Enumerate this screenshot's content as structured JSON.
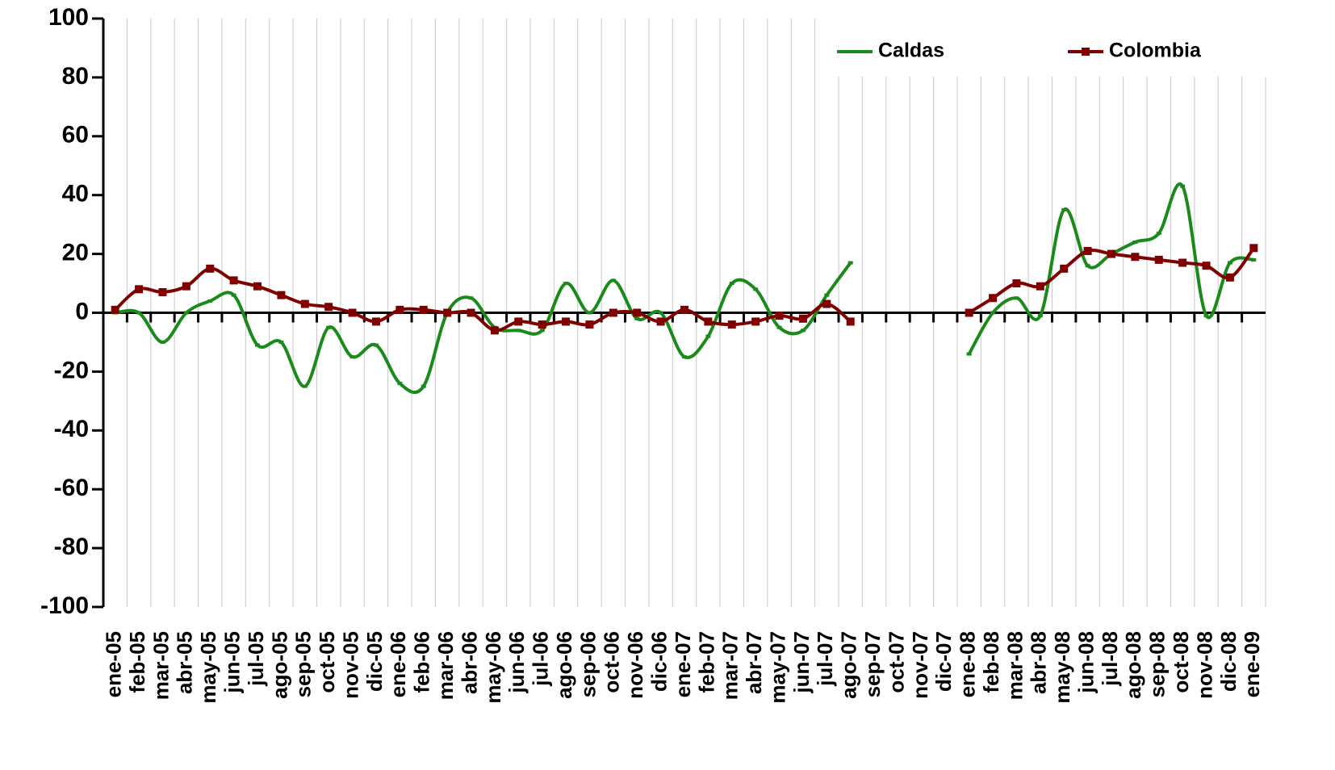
{
  "chart_data": {
    "type": "line",
    "categories": [
      "ene-05",
      "feb-05",
      "mar-05",
      "abr-05",
      "may-05",
      "jun-05",
      "jul-05",
      "ago-05",
      "sep-05",
      "oct-05",
      "nov-05",
      "dic-05",
      "ene-06",
      "feb-06",
      "mar-06",
      "abr-06",
      "may-06",
      "jun-06",
      "jul-06",
      "ago-06",
      "sep-06",
      "oct-06",
      "nov-06",
      "dic-06",
      "ene-07",
      "feb-07",
      "mar-07",
      "abr-07",
      "may-07",
      "jun-07",
      "jul-07",
      "ago-07",
      "sep-07",
      "oct-07",
      "nov-07",
      "dic-07",
      "ene-08",
      "feb-08",
      "mar-08",
      "abr-08",
      "may-08",
      "jun-08",
      "jul-08",
      "ago-08",
      "sep-08",
      "oct-08",
      "nov-08",
      "dic-08",
      "ene-09"
    ],
    "series": [
      {
        "name": "Caldas",
        "color": "#1a8a1a",
        "values": [
          0,
          0,
          -10,
          0,
          4,
          6,
          -11,
          -10,
          -25,
          -5,
          -15,
          -11,
          -24,
          -25,
          0,
          5,
          -5,
          -6,
          -6,
          10,
          0,
          11,
          -2,
          0,
          -15,
          -8,
          10,
          8,
          -5,
          -6,
          6,
          17,
          null,
          null,
          null,
          null,
          -14,
          0,
          5,
          -1,
          35,
          16,
          20,
          24,
          27,
          43,
          -1,
          17,
          18
        ]
      },
      {
        "name": "Colombia",
        "color": "#800000",
        "values": [
          1,
          8,
          7,
          9,
          15,
          11,
          9,
          6,
          3,
          2,
          0,
          -3,
          1,
          1,
          0,
          0,
          -6,
          -3,
          -4,
          -3,
          -4,
          0,
          0,
          -3,
          1,
          -3,
          -4,
          -3,
          -1,
          -2,
          3,
          -3,
          null,
          null,
          null,
          null,
          0,
          5,
          10,
          9,
          15,
          21,
          20,
          19,
          18,
          17,
          16,
          12,
          22
        ]
      }
    ],
    "ylim": [
      -100,
      100
    ],
    "yticks": [
      -100,
      -80,
      -60,
      -40,
      -20,
      0,
      20,
      40,
      60,
      80,
      100
    ],
    "grid": true,
    "legend": "top-right"
  }
}
